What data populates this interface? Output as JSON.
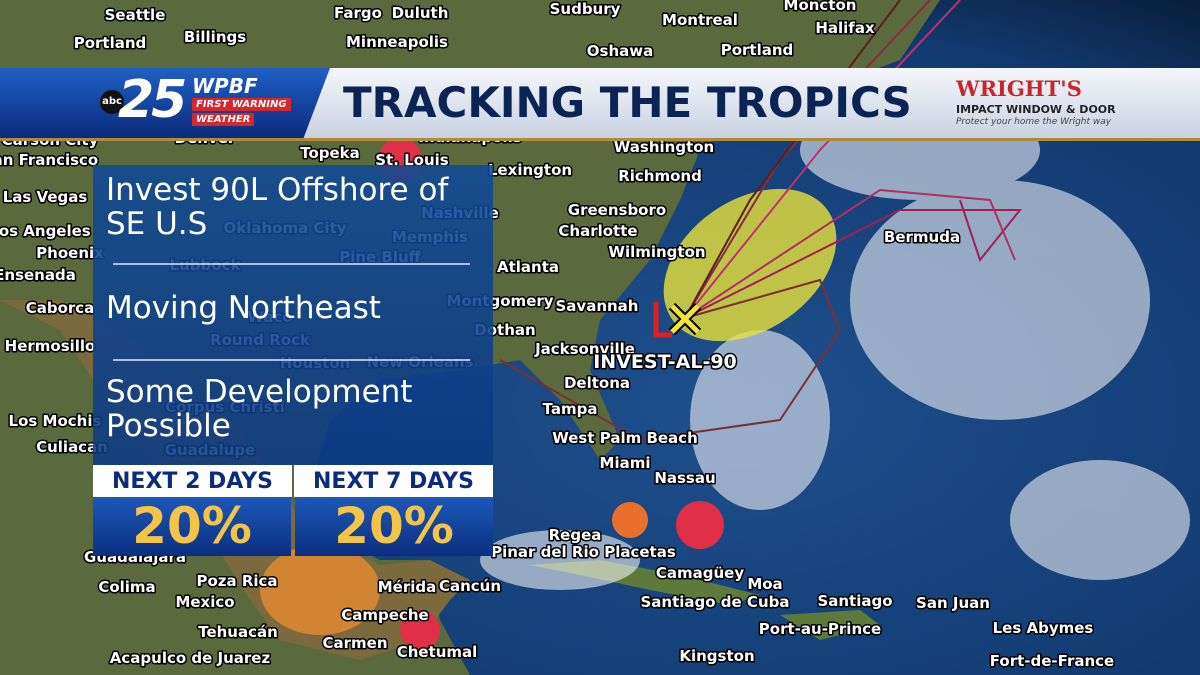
{
  "header": {
    "network": "abc",
    "channel": "25",
    "station": "WPBF",
    "brand_line1": "FIRST WARNING",
    "brand_line2": "WEATHER",
    "title": "TRACKING THE TROPICS",
    "sponsor": "WRIGHT'S",
    "sponsor_line": "IMPACT WINDOW & DOOR",
    "sponsor_tagline": "Protect your home the Wright way"
  },
  "panel": {
    "headline": "Invest 90L Offshore of SE U.S",
    "motion": "Moving Northeast",
    "outlook": "Some Development Possible",
    "odds": [
      {
        "label": "NEXT 2 DAYS",
        "value": "20%"
      },
      {
        "label": "NEXT 7 DAYS",
        "value": "20%"
      }
    ]
  },
  "map": {
    "storm_label": "INVEST-AL-90",
    "labels": [
      "Seattle",
      "Portland",
      "Billings",
      "Fargo",
      "Duluth",
      "Minneapolis",
      "Sudbury",
      "Montreal",
      "Moncton",
      "Halifax",
      "Oshawa",
      "Portland",
      "Carson City",
      "San Francisco",
      "Denver",
      "Topeka",
      "St. Louis",
      "Indianapolis",
      "Washington",
      "Lexington",
      "Richmond",
      "Las Vegas",
      "Nashville",
      "Greensboro",
      "Charlotte",
      "Los Angeles",
      "Oklahoma City",
      "Memphis",
      "Phoenix",
      "Wilmington",
      "Bermuda",
      "Lubbock",
      "Pine Bluff",
      "Atlanta",
      "Ensenada",
      "Caborca",
      "Montgomery",
      "Savannah",
      "Waco",
      "Dothan",
      "Hermosillo",
      "Round Rock",
      "Jacksonville",
      "Houston",
      "New Orleans",
      "Deltona",
      "Tampa",
      "Corpus Christi",
      "Los Mochis",
      "West Palm Beach",
      "Culiacan",
      "Guadalupe",
      "Miami",
      "Nassau",
      "Regea",
      "Guadalajara",
      "Pinar del Rio",
      "Placetas",
      "Colima",
      "Poza Rica",
      "Cancún",
      "Mérida",
      "Camagüey",
      "Moa",
      "Mexico",
      "Santiago de Cuba",
      "Santiago",
      "San Juan",
      "Tehuacán",
      "Campeche",
      "Port-au-Prince",
      "Les Abymes",
      "Acapulco de Juarez",
      "Carmen",
      "Chetumal",
      "Kingston",
      "Fort-de-France"
    ]
  }
}
